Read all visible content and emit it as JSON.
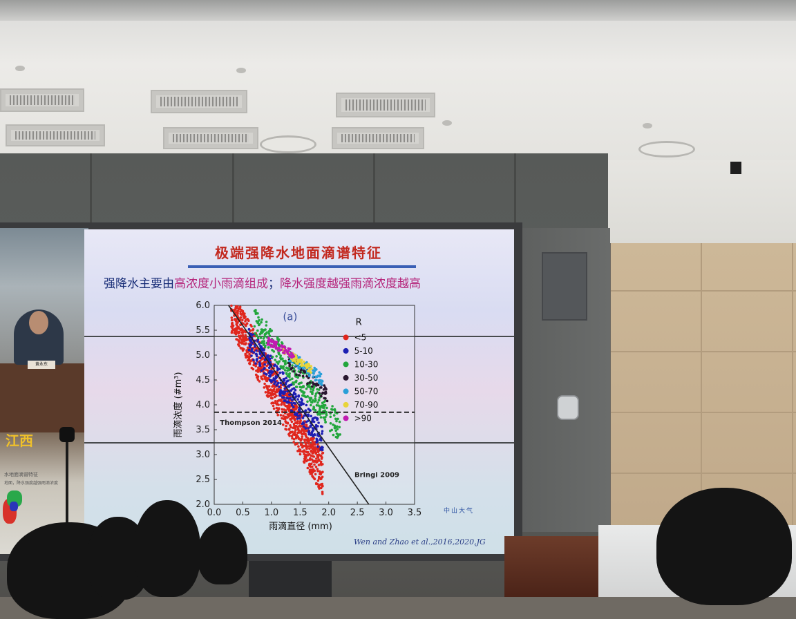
{
  "slide": {
    "title": "极端强降水地面滴谱特征",
    "subtitle_pre": "强降水主要由",
    "subtitle_hl1": "高浓度小雨滴组成",
    "subtitle_mid": "；",
    "subtitle_hl2": "降水强度越强雨滴浓度越高",
    "citation": "Wen and Zhao et al.,2016,2020,JG",
    "logo_text": "中山大气"
  },
  "video_feed": {
    "location": "江西",
    "nameplate": "黄永东",
    "thumb_title": "水地面滴谱特征",
    "thumb_sub": "地面，降水强度越强雨滴浓度"
  },
  "colors": {
    "title": "#c2281e",
    "subtitle": "#152a75",
    "highlight": "#b5247a",
    "location_label": "#f0c12a"
  },
  "chart_data": {
    "type": "scatter",
    "panel_label": "(a)",
    "xlabel": "雨滴直径 (mm)",
    "ylabel": "雨滴浓度 (#m³)",
    "xlim": [
      0.0,
      3.5
    ],
    "ylim": [
      2.0,
      6.0
    ],
    "xticks": [
      "0.0",
      "0.5",
      "1.0",
      "1.5",
      "2.0",
      "2.5",
      "3.0",
      "3.5"
    ],
    "yticks": [
      "2.0",
      "2.5",
      "3.0",
      "3.5",
      "4.0",
      "4.5",
      "5.0",
      "5.5",
      "6.0"
    ],
    "legend_title": "R",
    "legend_position": "top-right",
    "series": [
      {
        "name": "<5",
        "color": "#e0261d",
        "cloud": {
          "x_range": [
            0.3,
            1.9
          ],
          "y_top": 5.9,
          "y_bottom": 2.6,
          "spread": 0.55
        }
      },
      {
        "name": "5-10",
        "color": "#1d1fb3",
        "cloud": {
          "x_range": [
            0.6,
            1.9
          ],
          "y_top": 5.3,
          "y_bottom": 3.3,
          "spread": 0.35
        }
      },
      {
        "name": "10-30",
        "color": "#22a63c",
        "cloud": {
          "x_range": [
            0.7,
            2.2
          ],
          "y_top": 5.7,
          "y_bottom": 3.5,
          "spread": 0.35
        }
      },
      {
        "name": "30-50",
        "color": "#2a1730",
        "cloud": {
          "x_range": [
            1.3,
            2.0
          ],
          "y_top": 4.9,
          "y_bottom": 4.2,
          "spread": 0.2
        }
      },
      {
        "name": "50-70",
        "color": "#2a9fd8",
        "cloud": {
          "x_range": [
            1.3,
            1.9
          ],
          "y_top": 5.0,
          "y_bottom": 4.5,
          "spread": 0.15
        }
      },
      {
        "name": "70-90",
        "color": "#e8d43a",
        "cloud": {
          "x_range": [
            1.2,
            1.7
          ],
          "y_top": 5.1,
          "y_bottom": 4.7,
          "spread": 0.1
        }
      },
      {
        "name": ">90",
        "color": "#c11ab0",
        "cloud": {
          "x_range": [
            0.9,
            1.4
          ],
          "y_top": 5.3,
          "y_bottom": 5.0,
          "spread": 0.1
        }
      }
    ],
    "reference_lines": [
      {
        "name": "Thompson 2014",
        "kind": "horizontal-dashed",
        "y": 3.85
      },
      {
        "name": "Bringi 2009",
        "kind": "line",
        "points": [
          [
            0.25,
            6.0
          ],
          [
            2.7,
            2.0
          ]
        ]
      }
    ]
  }
}
